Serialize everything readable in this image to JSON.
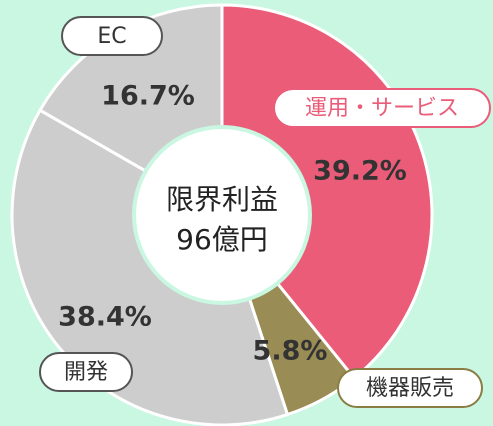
{
  "chart_data": {
    "type": "donut",
    "categories": [
      "運用・サービス",
      "機器販売",
      "開発",
      "EC"
    ],
    "values": [
      39.2,
      5.8,
      38.4,
      16.7
    ],
    "value_labels": [
      "39.2%",
      "5.8%",
      "38.4%",
      "16.7%"
    ],
    "colors": [
      "#ea5c78",
      "#9a8c55",
      "#cdcdcd",
      "#cdcdcd"
    ],
    "center_label": [
      "限界利益",
      "96億円"
    ]
  }
}
